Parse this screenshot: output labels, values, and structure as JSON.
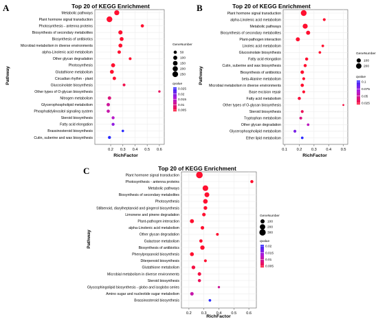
{
  "figure": {
    "panels": [
      "A",
      "B",
      "C"
    ]
  },
  "chart_data": [
    {
      "panel": "A",
      "type": "scatter",
      "title": "Top 20 of KEGG Enrichment",
      "xlabel": "RichFactor",
      "ylabel": "Pathway",
      "xlim": [
        0.07,
        0.64
      ],
      "xticks": [
        0.2,
        0.3,
        0.4,
        0.5,
        0.6
      ],
      "legend_size_title": "GeneNumber",
      "legend_size_values": [
        50,
        100,
        150,
        200,
        250
      ],
      "legend_color_title": "qvalue",
      "legend_color_values": [
        0.025,
        0.02,
        0.015,
        0.01,
        0.005
      ],
      "categories": [
        "Metabolic pathways",
        "Plant hormone signal transduction",
        "Photosynthesis - antenna proteins",
        "Biosynthesis of secondary metabolites",
        "Biosynthesis of antibiotics",
        "Microbial metabolism in diverse environments",
        "alpha-Linolenic acid metabolism",
        "Other glycan degradation",
        "Photosynthesis",
        "Glutathione metabolism",
        "Circadian rhythm - plant",
        "Glucosinolate biosynthesis",
        "Other types of O-glycan biosynthesis",
        "Nitrogen metabolism",
        "Glycerophospholipid metabolism",
        "Phosphatidylinositol signaling system",
        "Steroid biosynthesis",
        "Fatty acid elongation",
        "Brassinosteroid biosynthesis",
        "Cutin, suberine and wax biosynthesis"
      ],
      "x": [
        0.25,
        0.19,
        0.46,
        0.28,
        0.29,
        0.28,
        0.27,
        0.36,
        0.22,
        0.21,
        0.23,
        0.31,
        0.6,
        0.19,
        0.18,
        0.18,
        0.22,
        0.22,
        0.3,
        0.19
      ],
      "gene_number": [
        180,
        260,
        50,
        110,
        90,
        90,
        60,
        30,
        100,
        90,
        60,
        30,
        15,
        60,
        60,
        50,
        40,
        40,
        20,
        40
      ],
      "qvalue": [
        0.001,
        0.001,
        0.001,
        0.002,
        0.003,
        0.003,
        0.003,
        0.004,
        0.004,
        0.004,
        0.005,
        0.007,
        0.008,
        0.01,
        0.012,
        0.013,
        0.015,
        0.018,
        0.025,
        0.027
      ]
    },
    {
      "panel": "B",
      "type": "scatter",
      "title": "Top 20 of KEGG Enrichment",
      "xlabel": "RichFactor",
      "ylabel": "Pathway",
      "xlim": [
        0.09,
        0.53
      ],
      "xticks": [
        0.1,
        0.2,
        0.3,
        0.4,
        0.5
      ],
      "legend_size_title": "GeneNumber",
      "legend_size_values": [
        100,
        200
      ],
      "legend_color_title": "qvalue",
      "legend_color_values": [
        0.1,
        0.075,
        0.05,
        0.025
      ],
      "categories": [
        "Plant hormone signal transduction",
        "alpha-Linolenic acid metabolism",
        "Metabolic pathways",
        "Biosynthesis of secondary metabolites",
        "Plant-pathogen interaction",
        "Linoleic acid metabolism",
        "Glucosinolate biosynthesis",
        "Fatty acid elongation",
        "Cutin, suberine and wax biosynthesis",
        "Biosynthesis of antibiotics",
        "beta-Alanine metabolism",
        "Microbial metabolism in diverse environments",
        "Base excision repair",
        "Fatty acid metabolism",
        "Other types of O-glycan biosynthesis",
        "Steroid biosynthesis",
        "Tryptophan metabolism",
        "Other glycan degradation",
        "Glycerophospholipid metabolism",
        "Ether lipid metabolism"
      ],
      "x": [
        0.23,
        0.37,
        0.24,
        0.26,
        0.19,
        0.36,
        0.34,
        0.25,
        0.24,
        0.22,
        0.23,
        0.22,
        0.23,
        0.2,
        0.5,
        0.22,
        0.21,
        0.26,
        0.17,
        0.22
      ],
      "gene_number": [
        230,
        30,
        160,
        90,
        90,
        20,
        20,
        40,
        40,
        60,
        30,
        50,
        30,
        40,
        5,
        30,
        30,
        20,
        30,
        20
      ],
      "qvalue": [
        0.001,
        0.003,
        0.004,
        0.005,
        0.006,
        0.01,
        0.012,
        0.015,
        0.016,
        0.018,
        0.02,
        0.022,
        0.025,
        0.028,
        0.03,
        0.035,
        0.045,
        0.06,
        0.08,
        0.1
      ]
    },
    {
      "panel": "C",
      "type": "scatter",
      "title": "Top 20 of KEGG Enrichment",
      "xlabel": "RichFactor",
      "ylabel": "Pathway",
      "xlim": [
        0.15,
        0.65
      ],
      "xticks": [
        0.2,
        0.3,
        0.4,
        0.5,
        0.6
      ],
      "legend_size_title": "GeneNumber",
      "legend_size_values": [
        100,
        200,
        300
      ],
      "legend_color_title": "qvalue",
      "legend_color_values": [
        0.02,
        0.015,
        0.01,
        0.005
      ],
      "categories": [
        "Plant hormone signal transduction",
        "Photosynthesis - antenna proteins",
        "Metabolic pathways",
        "Biosynthesis of secondary metabolites",
        "Photosynthesis",
        "Stilbenoid, diarylheptanoid and gingerol biosynthesis",
        "Limonene and pinene degradation",
        "Plant-pathogen interaction",
        "alpha-Linolenic acid metabolism",
        "Other glycan degradation",
        "Galactose metabolism",
        "Biosynthesis of antibiotics",
        "Phenylpropanoid biosynthesis",
        "Diterpenoid biosynthesis",
        "Glutathione metabolism",
        "Microbial metabolism in diverse environments",
        "Steroid biosynthesis",
        "Glycosphingolipid biosynthesis - globo and isoglobo series",
        "Amino sugar and nucleotide sugar metabolism",
        "Brassinosteroid biosynthesis"
      ],
      "x": [
        0.27,
        0.62,
        0.31,
        0.32,
        0.31,
        0.31,
        0.3,
        0.22,
        0.29,
        0.39,
        0.28,
        0.29,
        0.22,
        0.31,
        0.23,
        0.27,
        0.27,
        0.4,
        0.22,
        0.34
      ],
      "gene_number": [
        330,
        40,
        220,
        150,
        130,
        70,
        60,
        90,
        60,
        25,
        50,
        110,
        80,
        30,
        70,
        60,
        40,
        12,
        60,
        20
      ],
      "qvalue": [
        0.001,
        0.001,
        0.001,
        0.001,
        0.002,
        0.002,
        0.002,
        0.003,
        0.003,
        0.004,
        0.004,
        0.004,
        0.005,
        0.005,
        0.006,
        0.006,
        0.007,
        0.01,
        0.011,
        0.021
      ]
    }
  ]
}
